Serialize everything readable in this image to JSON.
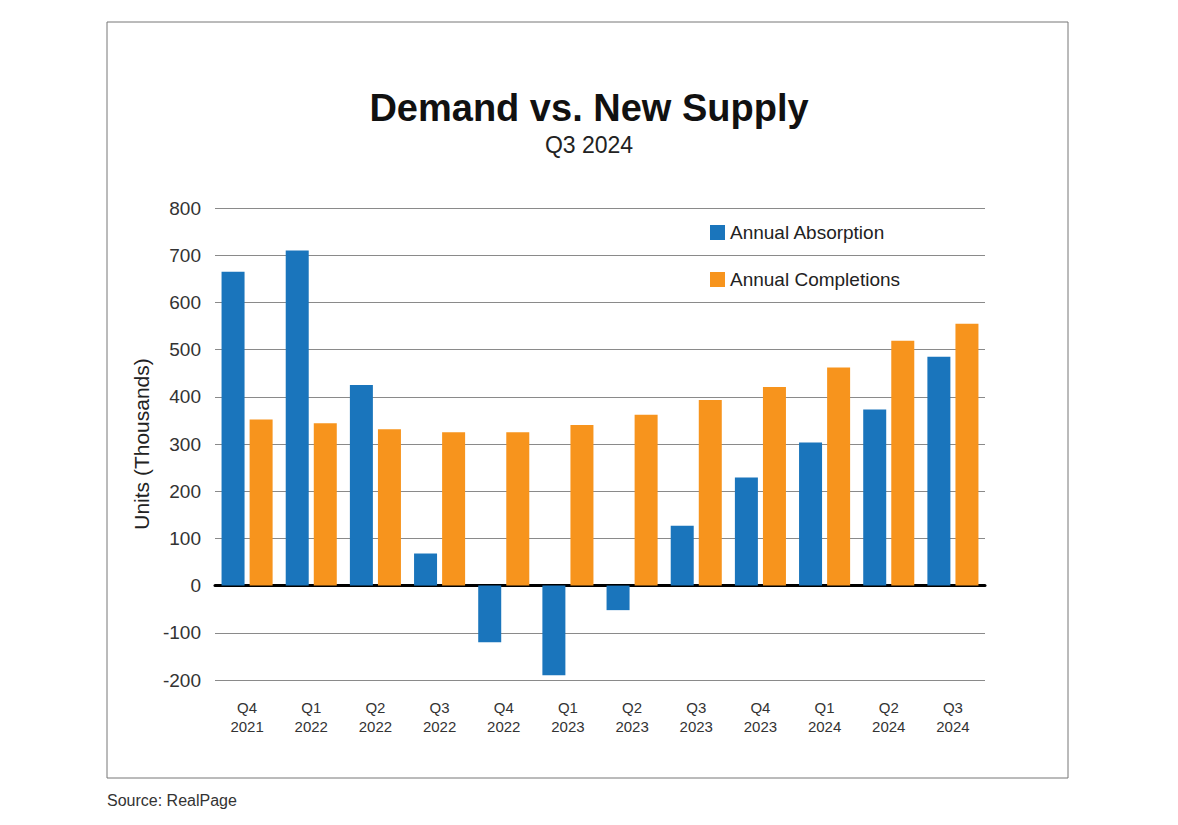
{
  "chart_data": {
    "type": "bar",
    "title": "Demand vs. New Supply",
    "subtitle": "Q3 2024",
    "y_label": "Units (Thousands)",
    "source": "Source: RealPage",
    "categories": [
      "Q4 2021",
      "Q1 2022",
      "Q2 2022",
      "Q3 2022",
      "Q4 2022",
      "Q1 2023",
      "Q2 2023",
      "Q3 2023",
      "Q4 2023",
      "Q1 2024",
      "Q2 2024",
      "Q3 2024"
    ],
    "series": [
      {
        "name": "Annual Absorption",
        "color": "#1a75bc",
        "values": [
          665,
          710,
          425,
          68,
          -120,
          -190,
          -52,
          127,
          229,
          303,
          373,
          485
        ]
      },
      {
        "name": "Annual Completions",
        "color": "#f7941d",
        "values": [
          352,
          344,
          331,
          325,
          325,
          340,
          362,
          393,
          421,
          462,
          519,
          555
        ]
      }
    ],
    "ylim": [
      -200,
      800
    ],
    "yticks": [
      -200,
      -100,
      0,
      100,
      200,
      300,
      400,
      500,
      600,
      700,
      800
    ],
    "grid": true,
    "legend": "upper right"
  }
}
